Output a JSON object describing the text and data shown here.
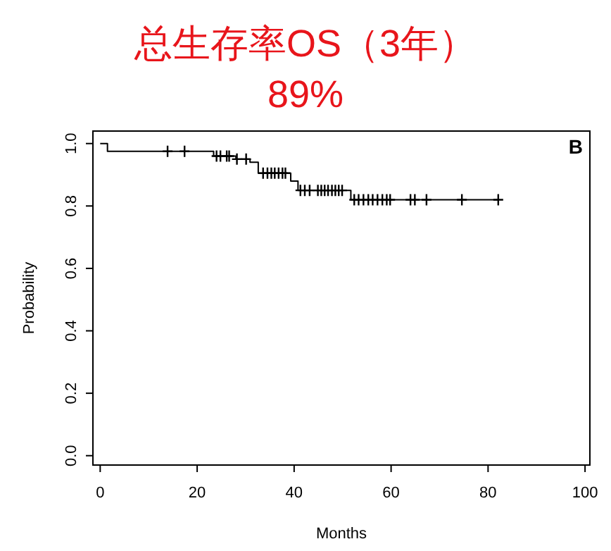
{
  "chart_data": {
    "type": "step",
    "title": "总生存率OS（3年）",
    "subtitle": "89%",
    "xlabel": "Months",
    "ylabel": "Probability",
    "annotations": [
      "B"
    ],
    "xlim": [
      -1.5,
      101
    ],
    "ylim": [
      -0.03,
      1.04
    ],
    "xticks": [
      0,
      20,
      40,
      60,
      80,
      100
    ],
    "yticks": [
      {
        "value": 0,
        "label": "0.0"
      },
      {
        "value": 0.2,
        "label": "0.2"
      },
      {
        "value": 0.4,
        "label": "0.4"
      },
      {
        "value": 0.6,
        "label": "0.6"
      },
      {
        "value": 0.8,
        "label": "0.8"
      },
      {
        "value": 1,
        "label": "1.0"
      }
    ],
    "series": [
      {
        "type": "step",
        "color": "#000000",
        "x": [
          0,
          1.5,
          23.4,
          28,
          30.9,
          32.6,
          39.3,
          40.8,
          51.7,
          82.1
        ],
        "values": [
          1,
          0.975,
          0.96,
          0.95,
          0.94,
          0.905,
          0.88,
          0.85,
          0.82,
          0.82
        ]
      },
      {
        "type": "scatter",
        "color": "#000000",
        "x": [
          13.9,
          17.4,
          24,
          24.8,
          26.1,
          26.6,
          28.2,
          30.1,
          33.6,
          34.5,
          35.3,
          36,
          36.8,
          37.6,
          38.2,
          41.3,
          42.2,
          43.2,
          44.9,
          45.6,
          46.3,
          47,
          47.8,
          48.5,
          49.2,
          49.9,
          52.4,
          53.3,
          54.3,
          55.3,
          56.2,
          57.2,
          58.2,
          59.1,
          59.8,
          64,
          64.9,
          67.3,
          74.6,
          82.1
        ],
        "values": [
          0.975,
          0.975,
          0.96,
          0.96,
          0.96,
          0.96,
          0.95,
          0.95,
          0.905,
          0.905,
          0.905,
          0.905,
          0.905,
          0.905,
          0.905,
          0.85,
          0.85,
          0.85,
          0.85,
          0.85,
          0.85,
          0.85,
          0.85,
          0.85,
          0.85,
          0.85,
          0.82,
          0.82,
          0.82,
          0.82,
          0.82,
          0.82,
          0.82,
          0.82,
          0.82,
          0.82,
          0.82,
          0.82,
          0.82,
          0.82
        ]
      }
    ]
  }
}
